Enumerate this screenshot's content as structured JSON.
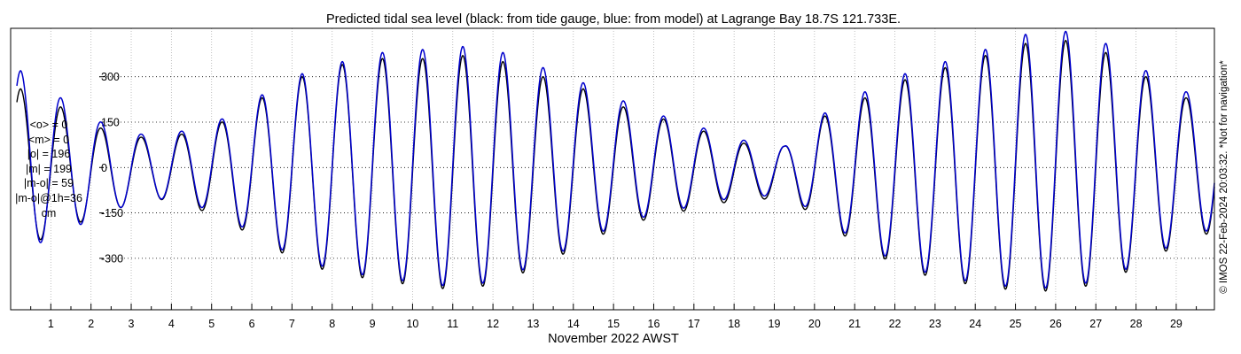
{
  "chart_data": {
    "type": "line",
    "title": "Predicted tidal sea level (black: from tide gauge, blue: from model) at Lagrange Bay 18.7S 121.733E.",
    "xlabel": "November 2022 AWST",
    "ylabel": "",
    "x_ticks": [
      "1",
      "2",
      "3",
      "4",
      "5",
      "6",
      "7",
      "8",
      "9",
      "10",
      "11",
      "12",
      "13",
      "14",
      "15",
      "16",
      "17",
      "18",
      "19",
      "20",
      "21",
      "22",
      "23",
      "24",
      "25",
      "26",
      "27",
      "28",
      "29"
    ],
    "y_ticks": [
      "-300",
      "-150",
      "0",
      "150",
      "300"
    ],
    "xlim": [
      0,
      29.95
    ],
    "ylim": [
      -470,
      460
    ],
    "grid": true,
    "series": [
      {
        "name": "from tide gauge",
        "color": "#000000",
        "high_peaks": [
          [
            0.25,
            260
          ],
          [
            1.25,
            200
          ],
          [
            2.25,
            130
          ],
          [
            3.25,
            100
          ],
          [
            4.25,
            110
          ],
          [
            5.25,
            150
          ],
          [
            6.25,
            230
          ],
          [
            7.25,
            300
          ],
          [
            8.25,
            340
          ],
          [
            9.25,
            360
          ],
          [
            10.25,
            360
          ],
          [
            11.25,
            370
          ],
          [
            12.25,
            350
          ],
          [
            13.25,
            300
          ],
          [
            14.25,
            260
          ],
          [
            15.25,
            200
          ],
          [
            16.25,
            160
          ],
          [
            17.25,
            120
          ],
          [
            18.25,
            80
          ],
          [
            19.25,
            70
          ],
          [
            20.25,
            170
          ],
          [
            21.25,
            230
          ],
          [
            22.25,
            290
          ],
          [
            23.25,
            330
          ],
          [
            24.25,
            370
          ],
          [
            25.25,
            410
          ],
          [
            26.25,
            420
          ],
          [
            27.25,
            380
          ],
          [
            28.25,
            300
          ],
          [
            29.25,
            230
          ]
        ],
        "low_troughs": [
          [
            0.55,
            -250
          ],
          [
            1.55,
            -190
          ],
          [
            2.55,
            -140
          ],
          [
            3.55,
            -100
          ],
          [
            4.55,
            -130
          ],
          [
            5.55,
            -190
          ],
          [
            6.55,
            -270
          ],
          [
            7.55,
            -330
          ],
          [
            8.55,
            -360
          ],
          [
            9.55,
            -380
          ],
          [
            10.55,
            -400
          ],
          [
            11.55,
            -400
          ],
          [
            12.55,
            -360
          ],
          [
            13.55,
            -300
          ],
          [
            14.55,
            -230
          ],
          [
            15.55,
            -180
          ],
          [
            16.55,
            -150
          ],
          [
            17.55,
            -120
          ],
          [
            18.55,
            -100
          ],
          [
            19.55,
            -120
          ],
          [
            20.55,
            -210
          ],
          [
            21.55,
            -290
          ],
          [
            22.55,
            -350
          ],
          [
            23.55,
            -380
          ],
          [
            24.55,
            -400
          ],
          [
            25.55,
            -410
          ],
          [
            26.55,
            -400
          ],
          [
            27.55,
            -360
          ],
          [
            28.55,
            -290
          ],
          [
            29.55,
            -220
          ]
        ]
      },
      {
        "name": "from model",
        "color": "#0000cc",
        "high_peaks": [
          [
            0.25,
            320
          ],
          [
            1.25,
            230
          ],
          [
            2.25,
            150
          ],
          [
            3.25,
            110
          ],
          [
            4.25,
            120
          ],
          [
            5.25,
            160
          ],
          [
            6.25,
            240
          ],
          [
            7.25,
            310
          ],
          [
            8.25,
            350
          ],
          [
            9.25,
            380
          ],
          [
            10.25,
            390
          ],
          [
            11.25,
            400
          ],
          [
            12.25,
            380
          ],
          [
            13.25,
            330
          ],
          [
            14.25,
            280
          ],
          [
            15.25,
            220
          ],
          [
            16.25,
            170
          ],
          [
            17.25,
            130
          ],
          [
            18.25,
            90
          ],
          [
            19.25,
            70
          ],
          [
            20.25,
            180
          ],
          [
            21.25,
            250
          ],
          [
            22.25,
            310
          ],
          [
            23.25,
            350
          ],
          [
            24.25,
            390
          ],
          [
            25.25,
            440
          ],
          [
            26.25,
            450
          ],
          [
            27.25,
            410
          ],
          [
            28.25,
            320
          ],
          [
            29.25,
            250
          ]
        ],
        "low_troughs": [
          [
            0.55,
            -260
          ],
          [
            1.55,
            -200
          ],
          [
            2.55,
            -140
          ],
          [
            3.55,
            -100
          ],
          [
            4.55,
            -120
          ],
          [
            5.55,
            -180
          ],
          [
            6.55,
            -260
          ],
          [
            7.55,
            -320
          ],
          [
            8.55,
            -350
          ],
          [
            9.55,
            -370
          ],
          [
            10.55,
            -390
          ],
          [
            11.55,
            -390
          ],
          [
            12.55,
            -350
          ],
          [
            13.55,
            -290
          ],
          [
            14.55,
            -220
          ],
          [
            15.55,
            -170
          ],
          [
            16.55,
            -140
          ],
          [
            17.55,
            -110
          ],
          [
            18.55,
            -90
          ],
          [
            19.55,
            -110
          ],
          [
            20.55,
            -200
          ],
          [
            21.55,
            -280
          ],
          [
            22.55,
            -340
          ],
          [
            23.55,
            -370
          ],
          [
            24.55,
            -390
          ],
          [
            25.55,
            -400
          ],
          [
            26.55,
            -390
          ],
          [
            27.55,
            -350
          ],
          [
            28.55,
            -280
          ],
          [
            29.55,
            -210
          ]
        ]
      }
    ]
  },
  "stats": {
    "mean_o": "<o> = 0",
    "mean_m": "<m> = 0",
    "abs_o": "|o| = 196",
    "abs_m": "|m| = 199",
    "abs_diff": "|m-o| = 59",
    "abs_diff_1h": "|m-o|@1h=36",
    "units": "cm"
  },
  "credit": "© IMOS 22-Feb-2024 20:03:32. *Not for navigation*"
}
